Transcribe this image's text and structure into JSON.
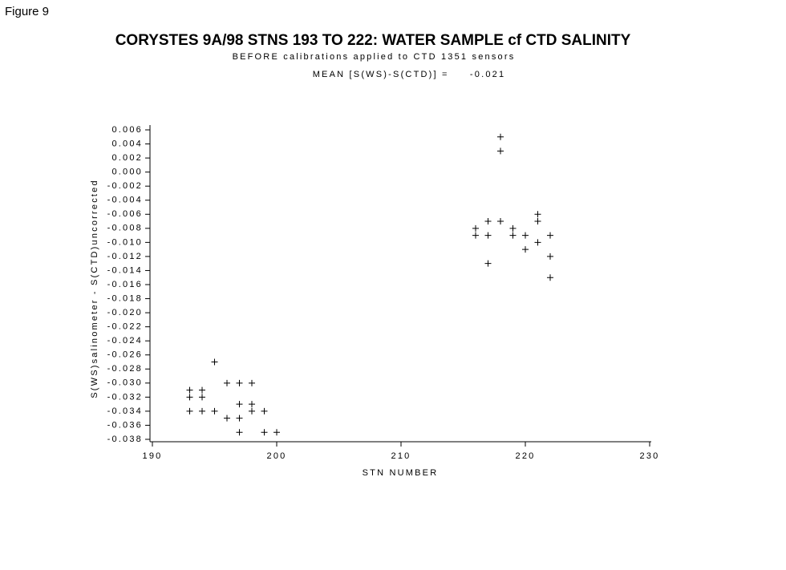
{
  "figure_label": "Figure 9",
  "chart_data": {
    "type": "scatter",
    "title": "CORYSTES 9A/98 STNS 193 TO 222: WATER SAMPLE cf CTD SALINITY",
    "subtitle": "BEFORE calibrations applied to CTD 1351 sensors",
    "annotation": "MEAN [S(WS)-S(CTD)] =     -0.021",
    "x_label": "STN NUMBER",
    "y_label": "S(WS)salinometer - S(CTD)uncorrected",
    "xlim": [
      190,
      230
    ],
    "xticks": [
      190,
      200,
      210,
      220,
      230
    ],
    "ylim": [
      -0.038,
      0.006
    ],
    "yticks": [
      0.006,
      0.004,
      0.002,
      {
        "value": 0,
        "label": "0.000"
      },
      -0.002,
      -0.004,
      -0.006,
      -0.008,
      {
        "value": -0.01,
        "label": "-0.010"
      },
      -0.012,
      -0.014,
      -0.016,
      -0.018,
      {
        "value": -0.02,
        "label": "-0.020"
      },
      -0.022,
      -0.024,
      -0.026,
      -0.028,
      {
        "value": -0.03,
        "label": "-0.030"
      },
      -0.032,
      -0.034,
      -0.036,
      -0.038
    ],
    "color": "#000000",
    "x": [
      218,
      218,
      217,
      218,
      221,
      221,
      216,
      219,
      216,
      217,
      219,
      220,
      222,
      221,
      220,
      222,
      217,
      222,
      195,
      196,
      197,
      198,
      193,
      194,
      193,
      194,
      197,
      198,
      193,
      194,
      195,
      198,
      199,
      196,
      197,
      197,
      199,
      200
    ],
    "values": [
      0.005,
      0.003,
      -0.007,
      -0.007,
      -0.006,
      -0.007,
      -0.008,
      -0.008,
      -0.009,
      -0.009,
      -0.009,
      -0.009,
      -0.009,
      -0.01,
      -0.011,
      -0.012,
      -0.013,
      -0.015,
      -0.027,
      -0.03,
      -0.03,
      -0.03,
      -0.031,
      -0.031,
      -0.032,
      -0.032,
      -0.033,
      -0.033,
      -0.034,
      -0.034,
      -0.034,
      -0.034,
      -0.034,
      -0.035,
      -0.035,
      -0.037,
      -0.037,
      -0.037
    ]
  }
}
